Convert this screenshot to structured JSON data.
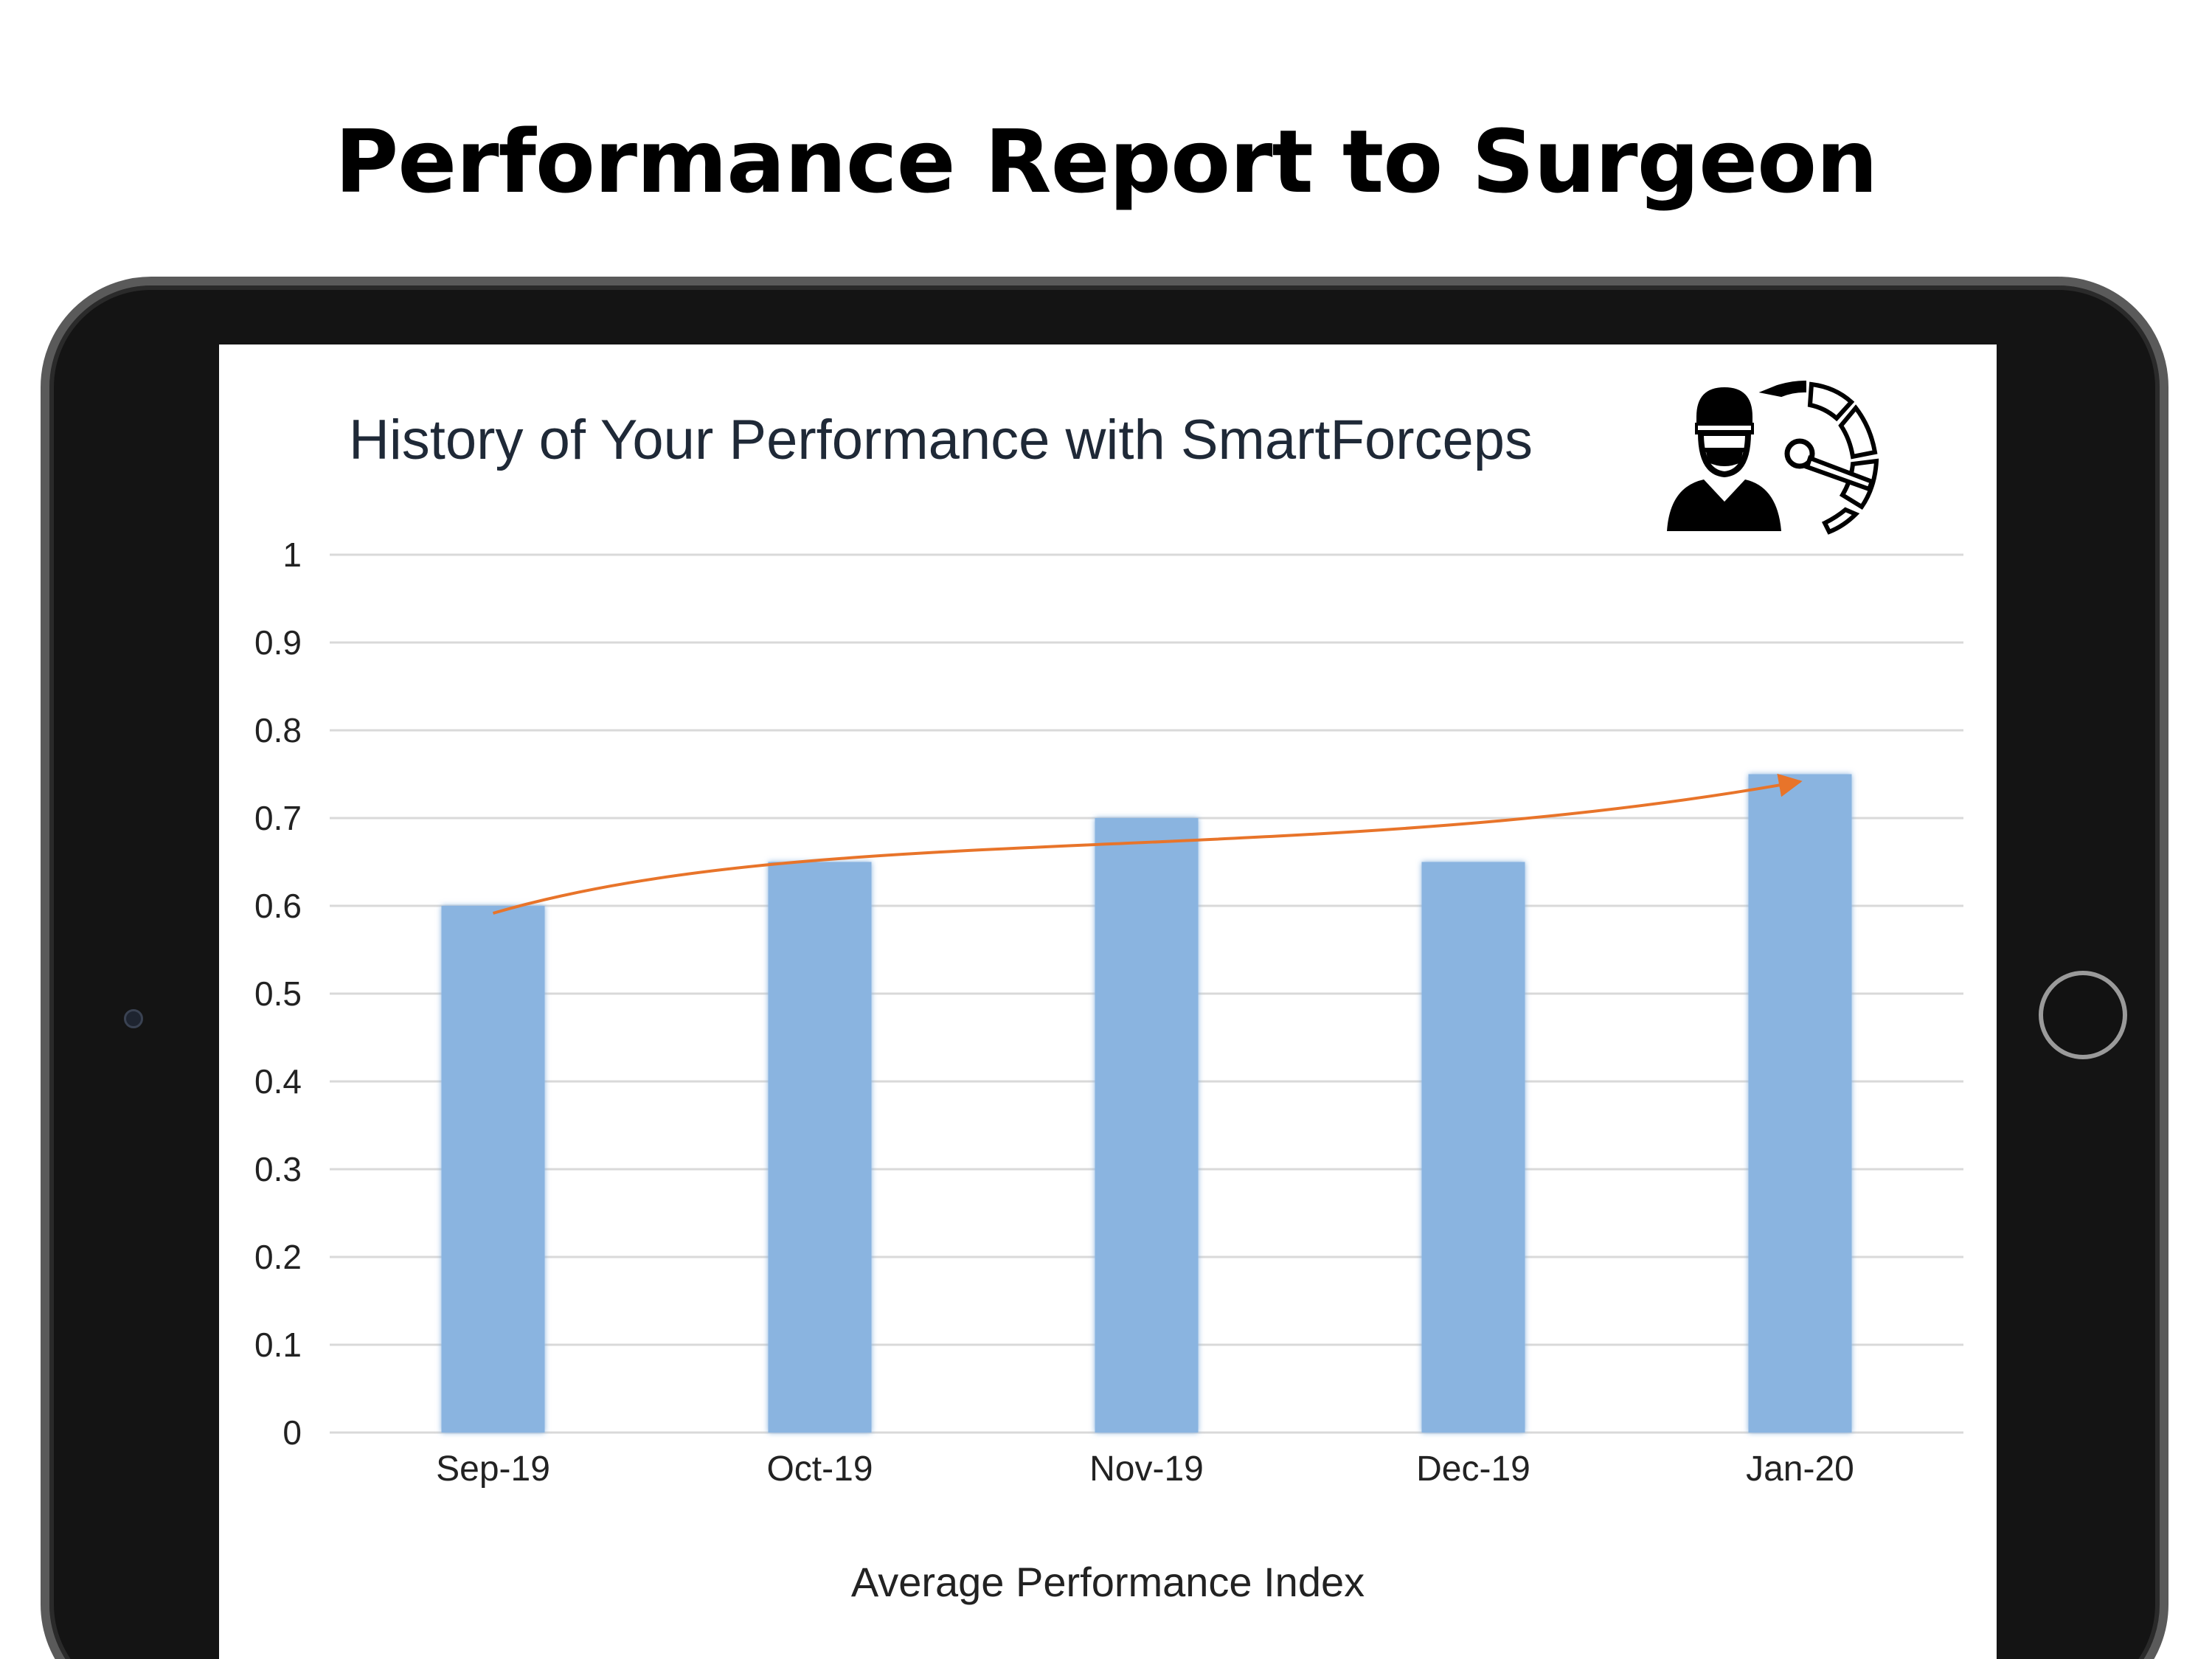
{
  "slide": {
    "title": "Performance Report to Surgeon"
  },
  "icons": {
    "surgeon": "surgeon-performance-gauge-icon",
    "camera": "front-camera-icon",
    "home": "home-button-icon"
  },
  "colors": {
    "bar": "#8ab4e0",
    "trend_arrow": "#e8742a",
    "grid": "#d9d9d9"
  },
  "chart_data": {
    "type": "bar",
    "title": "History of Your Performance with SmartForceps",
    "xlabel": "Average Performance Index",
    "ylabel": "",
    "categories": [
      "Sep-19",
      "Oct-19",
      "Nov-19",
      "Dec-19",
      "Jan-20"
    ],
    "values": [
      0.6,
      0.65,
      0.7,
      0.65,
      0.75
    ],
    "ylim": [
      0,
      1
    ],
    "yticks": [
      "0",
      "0.1",
      "0.2",
      "0.3",
      "0.4",
      "0.5",
      "0.6",
      "0.7",
      "0.8",
      "0.9",
      "1"
    ],
    "grid": true,
    "legend": "none",
    "annotations": [
      {
        "type": "trend-arrow",
        "from": "Sep-19",
        "to": "Jan-20"
      }
    ]
  }
}
